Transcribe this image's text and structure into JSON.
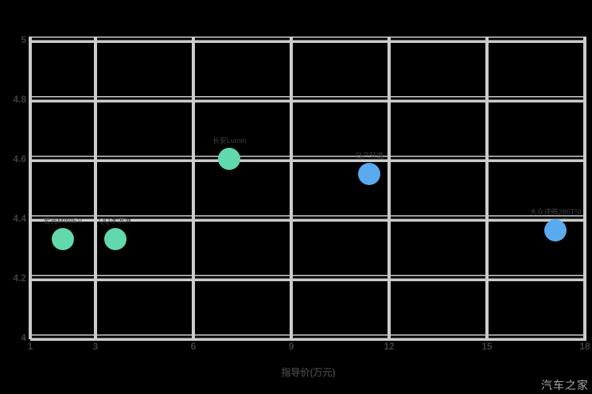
{
  "watermark": "汽车之家",
  "chart_data": {
    "type": "scatter",
    "title": "",
    "xlabel": "指导价(万元)",
    "ylabel": "",
    "xlim": [
      1,
      18
    ],
    "ylim": [
      4,
      5
    ],
    "grid": true,
    "legend": false,
    "x_ticks": [
      {
        "v": 1,
        "label": "1"
      },
      {
        "v": 3,
        "label": "3"
      },
      {
        "v": 6,
        "label": "6"
      },
      {
        "v": 9,
        "label": "9"
      },
      {
        "v": 12,
        "label": "12"
      },
      {
        "v": 15,
        "label": "15"
      },
      {
        "v": 18,
        "label": "18"
      }
    ],
    "y_ticks": [
      {
        "v": 5,
        "label": "5"
      },
      {
        "v": 4.8,
        "label": "4.8"
      },
      {
        "v": 4.6,
        "label": "4.6"
      },
      {
        "v": 4.4,
        "label": "4.4"
      },
      {
        "v": 4.2,
        "label": "4.2"
      },
      {
        "v": 4,
        "label": "4"
      }
    ],
    "series": [
      {
        "name": "series-green",
        "color": "#62d9ac",
        "points": [
          {
            "x": 2.0,
            "y": 4.33,
            "label": "宏光MINIEV"
          },
          {
            "x": 3.6,
            "y": 4.33,
            "label": "QQ冰淇淋"
          },
          {
            "x": 7.1,
            "y": 4.6,
            "label": "长安Lumin"
          }
        ]
      },
      {
        "name": "series-blue",
        "color": "#5aaaf0",
        "points": [
          {
            "x": 11.4,
            "y": 4.55,
            "label": "日产轩逸"
          },
          {
            "x": 17.1,
            "y": 4.36,
            "label": "大众速腾280TSI"
          }
        ]
      }
    ],
    "colors": {
      "background": "#000000",
      "grid": "#cccccc",
      "tick_text": "#3f3f3f",
      "label_text": "#3f3f3f",
      "watermark": "#a8a8a8"
    }
  }
}
